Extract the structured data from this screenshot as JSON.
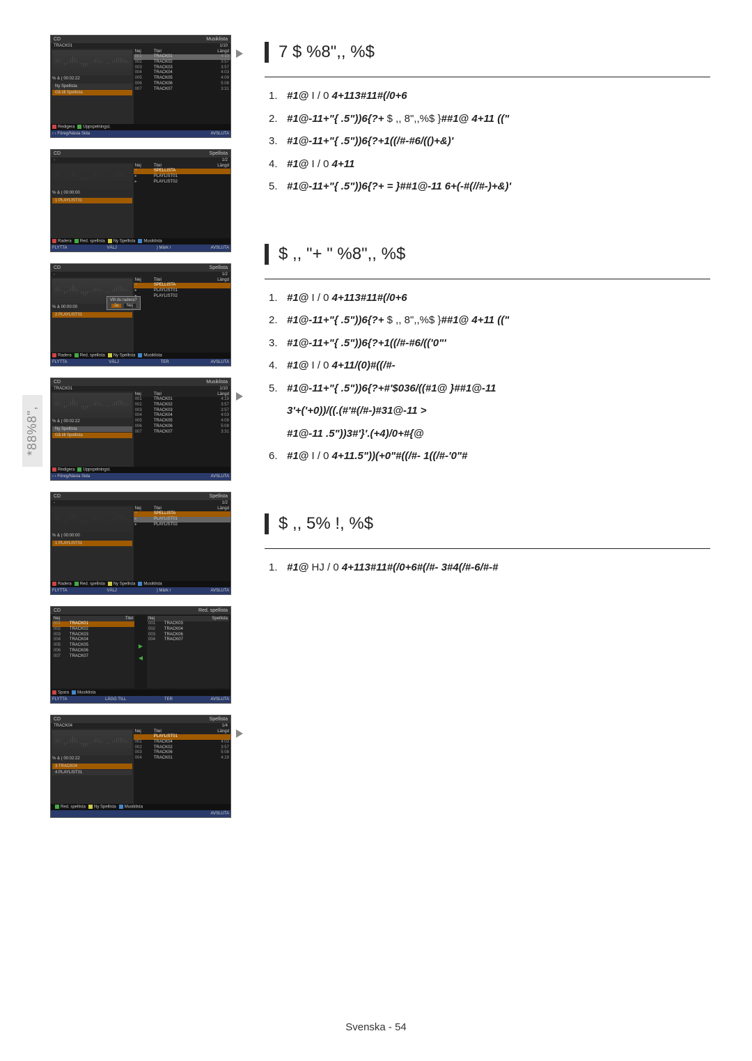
{
  "side_tab": "*88%8\",",
  "footer": "Svenska - 54",
  "sections": [
    {
      "title": "7 $ %8\",, %$",
      "steps": [
        {
          "n": "1.",
          "parts": [
            [
              "em",
              "#1@"
            ],
            [
              "plain",
              "   I / 0   "
            ],
            [
              "em",
              "4+113#11#(/0+6"
            ]
          ]
        },
        {
          "n": "2.",
          "parts": [
            [
              "em",
              "#1@-11+\"{"
            ],
            [
              "plain",
              "           "
            ],
            [
              "em",
              ".5\"))6{?+"
            ],
            [
              "plain",
              "   $ ,, 8\",,%$ }"
            ],
            [
              "em",
              "##1@ 4+11       ((\""
            ]
          ]
        },
        {
          "n": "3.",
          "parts": [
            [
              "em",
              "#1@-11+\"{"
            ],
            [
              "plain",
              "           "
            ],
            [
              "em",
              ".5\"))6{?+1((/#-#6/(()+&)'"
            ]
          ]
        },
        {
          "n": "4.",
          "parts": [
            [
              "em",
              "#1@"
            ],
            [
              "plain",
              "   I / 0   "
            ],
            [
              "em",
              "4+11"
            ]
          ]
        },
        {
          "n": "5.",
          "parts": [
            [
              "em",
              "#1@-11+\"{"
            ],
            [
              "plain",
              "           "
            ],
            [
              "em",
              ".5\"))6{?+  = }##1@-11 6+(-#(//#-)+&)'"
            ]
          ]
        }
      ]
    },
    {
      "title": "$ ,, \"+ \" %8\",, %$",
      "steps": [
        {
          "n": "1.",
          "parts": [
            [
              "em",
              "#1@"
            ],
            [
              "plain",
              "   I / 0   "
            ],
            [
              "em",
              "4+113#11#(/0+6"
            ]
          ]
        },
        {
          "n": "2.",
          "parts": [
            [
              "em",
              "#1@-11+\"{"
            ],
            [
              "plain",
              "           "
            ],
            [
              "em",
              ".5\"))6{?+"
            ],
            [
              "plain",
              "   $ ,, 8\",,%$ }"
            ],
            [
              "em",
              "##1@ 4+11       ((\""
            ]
          ]
        },
        {
          "n": "3.",
          "parts": [
            [
              "em",
              "#1@-11+\"{"
            ],
            [
              "plain",
              "           "
            ],
            [
              "em",
              ".5\"))6{?+1((/#-#6/(('0\"'"
            ]
          ]
        },
        {
          "n": "4.",
          "parts": [
            [
              "em",
              "#1@"
            ],
            [
              "plain",
              "   I / 0   "
            ],
            [
              "em",
              "4+11/(0)#((/#-"
            ]
          ]
        },
        {
          "n": "5.",
          "parts": [
            [
              "em",
              "#1@-11+\"{"
            ],
            [
              "plain",
              "           "
            ],
            [
              "em",
              ".5\"))6{?+#'$036/((#1@ }##1@-11"
            ]
          ]
        },
        {
          "n": "",
          "parts": [
            [
              "em",
              "3'+('+0))/((.(#'#(/#-)#31@-11                                    >"
            ]
          ]
        },
        {
          "n": "",
          "parts": [
            [
              "em",
              "#1@-11              .5\"))3#'}'.(+4)/0+#{@"
            ]
          ]
        },
        {
          "n": "6.",
          "parts": [
            [
              "em",
              "#1@"
            ],
            [
              "plain",
              "   I / 0   "
            ],
            [
              "em",
              "4+11.5\"))(+0\"#((/#- 1((/#-'0\"#"
            ]
          ]
        }
      ]
    },
    {
      "title": "$ ,, 5% !, %$",
      "steps": [
        {
          "n": "1.",
          "parts": [
            [
              "em",
              "#1@"
            ],
            [
              "plain",
              "   HJ / 0  "
            ],
            [
              "em",
              "4+113#11#(/0+6#(/#- 3#4(/#-6/#-#"
            ]
          ]
        }
      ]
    }
  ],
  "screens_common": {
    "cd": "CD",
    "musiklista": "Musiklista",
    "spellista": "Spellista",
    "red_spellista": "Red. spellista",
    "track01": "TRACK01",
    "frac10": "1/10",
    "frac12": "1/2",
    "frac14": "1/4",
    "nej": "Nej",
    "titel": "Titel",
    "langd": "Längd",
    "timecode": "00:02:22",
    "timecode0": "00:00:00",
    "ny_spellista": "Ny Spellista",
    "g_till_spellista": "Gå till Spellista",
    "redigera": "Redigera",
    "uppspelningsl": "Uppspelningsl.",
    "freg": "Föreg/Nästa Sida",
    "avsluta": "AVSLUTA",
    "flytta": "FLYTTA",
    "valj": "VÄLJ",
    "markr": "Märk r",
    "ter": "TER",
    "radera": "Radera",
    "red_spellista_short": "Red. spellista",
    "spara": "Spara",
    "lagg_till": "LÄGG TILL",
    "spellista_word": "SPELLISTA",
    "playlist01": "PLAYLIST01",
    "playlist02": "PLAYLIST02",
    "will_radera": "Vill du radera?",
    "ja": "Ja",
    "track04": "TRACK04"
  },
  "tracks": [
    {
      "no": "001",
      "name": "TRACK01",
      "len": "4:19"
    },
    {
      "no": "002",
      "name": "TRACK02",
      "len": "3:57"
    },
    {
      "no": "003",
      "name": "TRACK03",
      "len": "3:57"
    },
    {
      "no": "004",
      "name": "TRACK04",
      "len": "4:03"
    },
    {
      "no": "005",
      "name": "TRACK05",
      "len": "4:09"
    },
    {
      "no": "006",
      "name": "TRACK06",
      "len": "5:08"
    },
    {
      "no": "007",
      "name": "TRACK07",
      "len": "3:31"
    }
  ],
  "playlist_rows": [
    {
      "icon": "+",
      "name": "SPELLISTA"
    },
    {
      "icon": "▸",
      "name": "PLAYLIST01"
    },
    {
      "icon": "▸",
      "name": "PLAYLIST02"
    }
  ],
  "edit_right": [
    {
      "no": "001",
      "name": "TRACK03"
    },
    {
      "no": "002",
      "name": "TRACK04"
    },
    {
      "no": "003",
      "name": "TRACK06"
    },
    {
      "no": "004",
      "name": "TRACK07"
    }
  ],
  "s7_rows": [
    {
      "no": "",
      "name": "PLAYLIST01"
    },
    {
      "no": "001",
      "name": "TRACK04",
      "len": "4:03"
    },
    {
      "no": "002",
      "name": "TRACK02",
      "len": "3:57"
    },
    {
      "no": "003",
      "name": "TRACK06",
      "len": "5:08"
    },
    {
      "no": "004",
      "name": "TRACK01",
      "len": "4:19"
    }
  ],
  "s7_left": [
    "TRACK04",
    "PLAYLIST01"
  ]
}
